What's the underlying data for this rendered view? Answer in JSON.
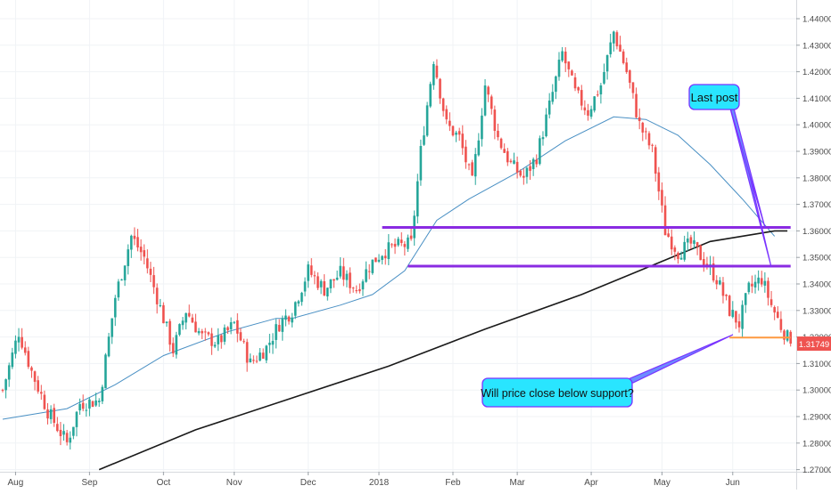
{
  "chart_data": {
    "type": "candlestick",
    "ylim": [
      1.265,
      1.445
    ],
    "y_ticks": [
      "1.27000",
      "1.28000",
      "1.29000",
      "1.30000",
      "1.31000",
      "1.32000",
      "1.33000",
      "1.34000",
      "1.35000",
      "1.36000",
      "1.37000",
      "1.38000",
      "1.39000",
      "1.40000",
      "1.41000",
      "1.42000",
      "1.43000",
      "1.44000"
    ],
    "x_ticks": [
      {
        "label": "Aug",
        "bar": 4
      },
      {
        "label": "Sep",
        "bar": 27
      },
      {
        "label": "Oct",
        "bar": 50
      },
      {
        "label": "Nov",
        "bar": 72
      },
      {
        "label": "Dec",
        "bar": 95
      },
      {
        "label": "2018",
        "bar": 117
      },
      {
        "label": "Feb",
        "bar": 140
      },
      {
        "label": "Mar",
        "bar": 160
      },
      {
        "label": "Apr",
        "bar": 183
      },
      {
        "label": "May",
        "bar": 205
      },
      {
        "label": "Jun",
        "bar": 227
      }
    ],
    "anchors": [
      [
        0,
        1.3
      ],
      [
        5,
        1.322
      ],
      [
        9,
        1.307
      ],
      [
        14,
        1.292
      ],
      [
        20,
        1.28
      ],
      [
        24,
        1.295
      ],
      [
        30,
        1.296
      ],
      [
        35,
        1.335
      ],
      [
        40,
        1.358
      ],
      [
        44,
        1.35
      ],
      [
        48,
        1.335
      ],
      [
        53,
        1.315
      ],
      [
        57,
        1.33
      ],
      [
        62,
        1.32
      ],
      [
        67,
        1.318
      ],
      [
        72,
        1.325
      ],
      [
        77,
        1.31
      ],
      [
        82,
        1.316
      ],
      [
        86,
        1.325
      ],
      [
        90,
        1.33
      ],
      [
        95,
        1.345
      ],
      [
        100,
        1.338
      ],
      [
        105,
        1.344
      ],
      [
        110,
        1.338
      ],
      [
        114,
        1.347
      ],
      [
        118,
        1.352
      ],
      [
        122,
        1.354
      ],
      [
        127,
        1.355
      ],
      [
        130,
        1.39
      ],
      [
        134,
        1.425
      ],
      [
        138,
        1.4
      ],
      [
        142,
        1.395
      ],
      [
        146,
        1.378
      ],
      [
        150,
        1.415
      ],
      [
        154,
        1.395
      ],
      [
        158,
        1.385
      ],
      [
        162,
        1.38
      ],
      [
        166,
        1.388
      ],
      [
        170,
        1.407
      ],
      [
        174,
        1.427
      ],
      [
        178,
        1.412
      ],
      [
        182,
        1.405
      ],
      [
        186,
        1.415
      ],
      [
        190,
        1.435
      ],
      [
        194,
        1.42
      ],
      [
        198,
        1.4
      ],
      [
        202,
        1.39
      ],
      [
        206,
        1.36
      ],
      [
        210,
        1.352
      ],
      [
        214,
        1.355
      ],
      [
        218,
        1.349
      ],
      [
        222,
        1.342
      ],
      [
        226,
        1.33
      ],
      [
        229,
        1.325
      ],
      [
        232,
        1.338
      ],
      [
        236,
        1.342
      ],
      [
        239,
        1.332
      ],
      [
        242,
        1.324
      ],
      [
        245,
        1.3175
      ]
    ],
    "ma_short": [
      [
        0,
        1.289
      ],
      [
        20,
        1.293
      ],
      [
        35,
        1.302
      ],
      [
        50,
        1.313
      ],
      [
        70,
        1.322
      ],
      [
        85,
        1.327
      ],
      [
        90,
        1.327
      ],
      [
        105,
        1.332
      ],
      [
        115,
        1.336
      ],
      [
        125,
        1.345
      ],
      [
        135,
        1.364
      ],
      [
        145,
        1.372
      ],
      [
        160,
        1.382
      ],
      [
        175,
        1.394
      ],
      [
        190,
        1.403
      ],
      [
        200,
        1.402
      ],
      [
        210,
        1.396
      ],
      [
        220,
        1.385
      ],
      [
        230,
        1.372
      ],
      [
        240,
        1.358
      ]
    ],
    "ma_long": [
      [
        30,
        1.27
      ],
      [
        60,
        1.285
      ],
      [
        90,
        1.297
      ],
      [
        120,
        1.309
      ],
      [
        150,
        1.323
      ],
      [
        180,
        1.336
      ],
      [
        200,
        1.346
      ],
      [
        220,
        1.356
      ],
      [
        240,
        1.36
      ],
      [
        244,
        1.36
      ]
    ],
    "resistance_1": {
      "price": 1.3613,
      "from_bar": 118,
      "to_bar": 245
    },
    "resistance_2": {
      "price": 1.3467,
      "from_bar": 126,
      "to_bar": 245
    },
    "support": {
      "price": 1.3198,
      "from_bar": 226,
      "to_bar": 245
    },
    "last_price": "1.31749",
    "annotations": [
      {
        "text": "Last post"
      },
      {
        "text": "Will price close below support?"
      }
    ],
    "colors": {
      "up": "#26a69a",
      "down": "#ef5350",
      "ma_short": "#4a90c4",
      "ma_long": "#1a1a1a",
      "resistance": "#8a2be2",
      "support": "#ff9a40",
      "callout_fill": "#29e5ff",
      "callout_border": "#7a33ff"
    }
  }
}
